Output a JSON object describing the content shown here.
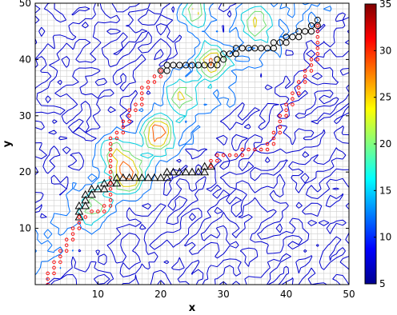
{
  "chart_data": {
    "type": "heatmap",
    "subtype": "contour plot over grid with two marked paths",
    "title": "",
    "xlabel": "x",
    "ylabel": "y",
    "xlim": [
      0,
      50
    ],
    "ylim": [
      0,
      50
    ],
    "x_ticks": [
      10,
      20,
      30,
      40,
      50
    ],
    "y_ticks": [
      10,
      20,
      30,
      40,
      50
    ],
    "grid": true,
    "colorbar": {
      "colormap": "jet",
      "range": [
        5,
        35
      ],
      "ticks": [
        5,
        10,
        15,
        20,
        25,
        30,
        35
      ],
      "colors": [
        "#00008f",
        "#0000ff",
        "#0080ff",
        "#00ffff",
        "#80ff80",
        "#ffff00",
        "#ff8000",
        "#ff0000",
        "#800000"
      ]
    },
    "contour_levels": [
      5,
      10,
      15,
      20,
      25,
      30
    ],
    "contour_colors": [
      "#0000d0",
      "#0070ff",
      "#00d0e0",
      "#70e070",
      "#e0d000",
      "#ff6000"
    ],
    "high_value_regions": [
      {
        "x": 15,
        "y": 19.5,
        "peak": 30
      },
      {
        "x": 19.5,
        "y": 27,
        "peak": 30
      },
      {
        "x": 12.5,
        "y": 23.5,
        "peak": 22
      },
      {
        "x": 9.5,
        "y": 14,
        "peak": 18
      },
      {
        "x": 23,
        "y": 34,
        "peak": 22
      },
      {
        "x": 28,
        "y": 40,
        "peak": 28
      },
      {
        "x": 35,
        "y": 47,
        "peak": 24
      },
      {
        "x": 25.5,
        "y": 48.5,
        "peak": 26
      }
    ],
    "series": [
      {
        "marker": "triangle",
        "color": "#000000",
        "points": [
          [
            7,
            12
          ],
          [
            7,
            13
          ],
          [
            7,
            14
          ],
          [
            8,
            14
          ],
          [
            8,
            15
          ],
          [
            8,
            16
          ],
          [
            9,
            16
          ],
          [
            9,
            17
          ],
          [
            10,
            17
          ],
          [
            11,
            17
          ],
          [
            11,
            18
          ],
          [
            12,
            18
          ],
          [
            13,
            18
          ],
          [
            13,
            19
          ],
          [
            14,
            19
          ],
          [
            15,
            19
          ],
          [
            16,
            19
          ],
          [
            17,
            19
          ],
          [
            18,
            19
          ],
          [
            19,
            19
          ],
          [
            20,
            19
          ],
          [
            21,
            19
          ],
          [
            21,
            20
          ],
          [
            22,
            20
          ],
          [
            23,
            20
          ],
          [
            24,
            20
          ],
          [
            25,
            20
          ],
          [
            26,
            20
          ],
          [
            27,
            20
          ],
          [
            27,
            21
          ],
          [
            28,
            21
          ]
        ]
      },
      {
        "marker": "circle",
        "color": "#000000",
        "points": [
          [
            20,
            38
          ],
          [
            21,
            38
          ],
          [
            21,
            39
          ],
          [
            22,
            39
          ],
          [
            23,
            39
          ],
          [
            24,
            39
          ],
          [
            25,
            39
          ],
          [
            26,
            39
          ],
          [
            27,
            39
          ],
          [
            28,
            39
          ],
          [
            29,
            39
          ],
          [
            29,
            40
          ],
          [
            30,
            40
          ],
          [
            30,
            41
          ],
          [
            31,
            41
          ],
          [
            32,
            41
          ],
          [
            32,
            42
          ],
          [
            33,
            42
          ],
          [
            34,
            42
          ],
          [
            35,
            42
          ],
          [
            36,
            42
          ],
          [
            37,
            42
          ],
          [
            38,
            42
          ],
          [
            38,
            43
          ],
          [
            39,
            43
          ],
          [
            40,
            43
          ],
          [
            40,
            44
          ],
          [
            41,
            44
          ],
          [
            42,
            44
          ],
          [
            42,
            45
          ],
          [
            43,
            45
          ],
          [
            44,
            45
          ],
          [
            44,
            46
          ],
          [
            45,
            46
          ],
          [
            45,
            47
          ]
        ]
      },
      {
        "marker": "dot",
        "color": "#ff0000",
        "points": [
          [
            2,
            0
          ],
          [
            2,
            1
          ],
          [
            2,
            2
          ],
          [
            3,
            2
          ],
          [
            3,
            3
          ],
          [
            3,
            4
          ],
          [
            4,
            4
          ],
          [
            4,
            5
          ],
          [
            4,
            6
          ],
          [
            5,
            6
          ],
          [
            5,
            7
          ],
          [
            5,
            8
          ],
          [
            6,
            8
          ],
          [
            6,
            9
          ],
          [
            6,
            10
          ],
          [
            7,
            10
          ],
          [
            7,
            11
          ],
          [
            7,
            12
          ],
          [
            8,
            12
          ],
          [
            9,
            13
          ],
          [
            10,
            13
          ],
          [
            11,
            13
          ],
          [
            11,
            14
          ],
          [
            12,
            14
          ],
          [
            12,
            15
          ],
          [
            12,
            16
          ],
          [
            12,
            17
          ],
          [
            12,
            18
          ],
          [
            12,
            19
          ],
          [
            12,
            20
          ],
          [
            12,
            21
          ],
          [
            12,
            22
          ],
          [
            12,
            23
          ],
          [
            12,
            24
          ],
          [
            12,
            25
          ],
          [
            12,
            26
          ],
          [
            13,
            26
          ],
          [
            13,
            27
          ],
          [
            14,
            27
          ],
          [
            14,
            28
          ],
          [
            14,
            29
          ],
          [
            15,
            29
          ],
          [
            15,
            30
          ],
          [
            15,
            31
          ],
          [
            16,
            31
          ],
          [
            16,
            32
          ],
          [
            17,
            32
          ],
          [
            17,
            33
          ],
          [
            17,
            34
          ],
          [
            17,
            35
          ],
          [
            18,
            35
          ],
          [
            18,
            36
          ],
          [
            19,
            36
          ],
          [
            19,
            37
          ],
          [
            20,
            37
          ],
          [
            20,
            38
          ],
          [
            45,
            46
          ],
          [
            45,
            45
          ],
          [
            45,
            44
          ],
          [
            45,
            43
          ],
          [
            45,
            42
          ],
          [
            45,
            41
          ],
          [
            45,
            40
          ],
          [
            44,
            40
          ],
          [
            44,
            39
          ],
          [
            44,
            38
          ],
          [
            43,
            38
          ],
          [
            43,
            37
          ],
          [
            43,
            36
          ],
          [
            42,
            36
          ],
          [
            42,
            35
          ],
          [
            42,
            34
          ],
          [
            41,
            34
          ],
          [
            41,
            33
          ],
          [
            41,
            32
          ],
          [
            40,
            32
          ],
          [
            40,
            31
          ],
          [
            40,
            30
          ],
          [
            39,
            30
          ],
          [
            39,
            29
          ],
          [
            39,
            28
          ],
          [
            39,
            27
          ],
          [
            38,
            27
          ],
          [
            38,
            26
          ],
          [
            38,
            25
          ],
          [
            37,
            25
          ],
          [
            37,
            24
          ],
          [
            36,
            24
          ],
          [
            35,
            24
          ],
          [
            34,
            24
          ],
          [
            33,
            24
          ],
          [
            33,
            23
          ],
          [
            32,
            23
          ],
          [
            31,
            23
          ],
          [
            30,
            23
          ],
          [
            29,
            23
          ],
          [
            29,
            22
          ],
          [
            28,
            22
          ],
          [
            28,
            21
          ]
        ]
      }
    ]
  }
}
